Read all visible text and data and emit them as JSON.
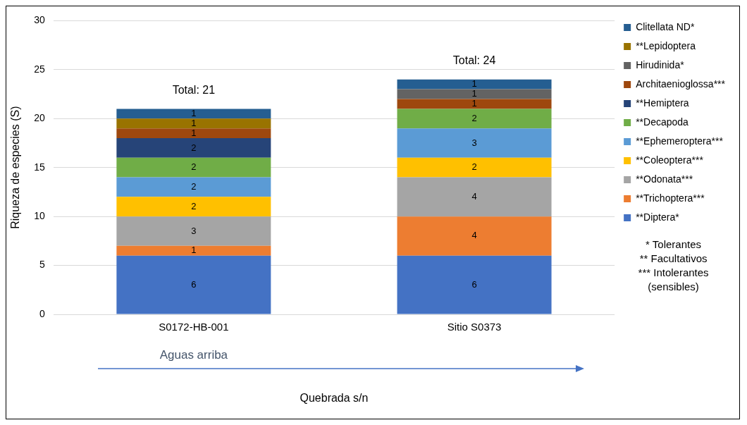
{
  "chart_data": {
    "type": "bar",
    "stacked": true,
    "ylabel": "Riqueza de especies (S)",
    "categories": [
      "S0172-HB-001",
      "Sitio S0373"
    ],
    "series": [
      {
        "name": "**Diptera*",
        "color": "#4472c4",
        "values": [
          6,
          6
        ]
      },
      {
        "name": "**Trichoptera***",
        "color": "#ed7d31",
        "values": [
          1,
          4
        ]
      },
      {
        "name": "**Odonata***",
        "color": "#a5a5a5",
        "values": [
          3,
          4
        ]
      },
      {
        "name": "**Coleoptera***",
        "color": "#ffc000",
        "values": [
          2,
          2
        ]
      },
      {
        "name": "**Ephemeroptera***",
        "color": "#5b9bd5",
        "values": [
          2,
          3
        ]
      },
      {
        "name": "**Decapoda",
        "color": "#70ad47",
        "values": [
          2,
          2
        ]
      },
      {
        "name": "**Hemiptera",
        "color": "#264478",
        "values": [
          2,
          null
        ]
      },
      {
        "name": "Architaenioglossa***",
        "color": "#9e480e",
        "values": [
          1,
          1
        ]
      },
      {
        "name": "Hirudinida*",
        "color": "#636363",
        "values": [
          null,
          1
        ]
      },
      {
        "name": "**Lepidoptera",
        "color": "#997300",
        "values": [
          1,
          null
        ]
      },
      {
        "name": "Clitellata ND*",
        "color": "#255e91",
        "values": [
          1,
          1
        ]
      }
    ],
    "ylim": [
      0,
      30
    ],
    "yticks": [
      0,
      5,
      10,
      15,
      20,
      25,
      30
    ],
    "grid": "y",
    "legend": "right",
    "data_labels": true,
    "totals": [
      "Total: 21",
      "Total: 24"
    ],
    "annotations": [
      "Aguas arriba",
      "Quebrada s/n",
      "* Tolerantes",
      "** Facultativos",
      "*** Intolerantes (sensibles)"
    ]
  }
}
